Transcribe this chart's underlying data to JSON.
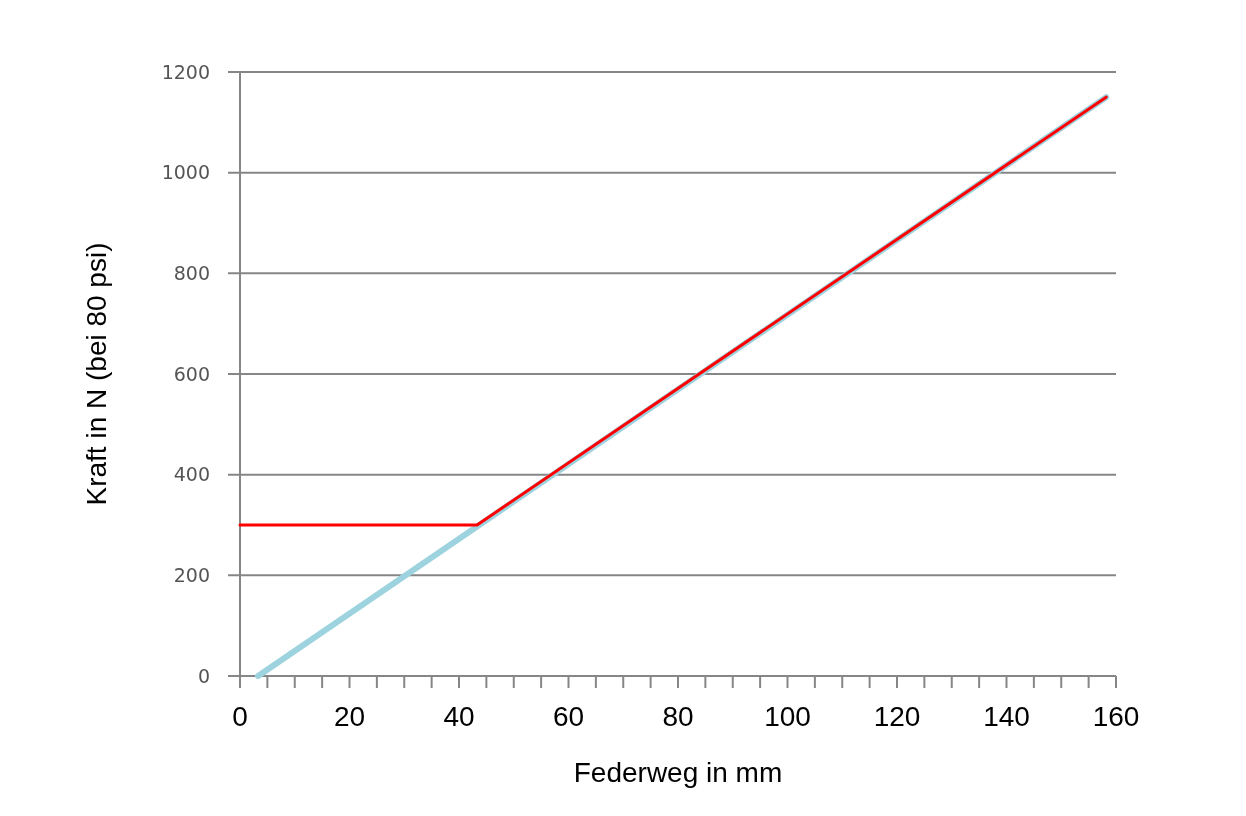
{
  "chart_data": {
    "type": "line",
    "xlabel": "Federweg in mm",
    "ylabel": "Kraft in N (bei 80 psi)",
    "xlim": [
      0,
      160
    ],
    "ylim": [
      0,
      1200
    ],
    "xticks": [
      0,
      {
        "value": 5,
        "label": null
      },
      {
        "value": 10,
        "label": null
      },
      {
        "value": 15,
        "label": null
      },
      20,
      {
        "value": 25,
        "label": null
      },
      {
        "value": 30,
        "label": null
      },
      {
        "value": 35,
        "label": null
      },
      40,
      {
        "value": 45,
        "label": null
      },
      {
        "value": 50,
        "label": null
      },
      {
        "value": 55,
        "label": null
      },
      60,
      {
        "value": 65,
        "label": null
      },
      {
        "value": 70,
        "label": null
      },
      {
        "value": 75,
        "label": null
      },
      80,
      {
        "value": 85,
        "label": null
      },
      {
        "value": 90,
        "label": null
      },
      {
        "value": 95,
        "label": null
      },
      100,
      {
        "value": 105,
        "label": null
      },
      {
        "value": 110,
        "label": null
      },
      {
        "value": 115,
        "label": null
      },
      120,
      {
        "value": 125,
        "label": null
      },
      {
        "value": 130,
        "label": null
      },
      {
        "value": 135,
        "label": null
      },
      140,
      {
        "value": 145,
        "label": null
      },
      {
        "value": 150,
        "label": null
      },
      {
        "value": 155,
        "label": null
      },
      160
    ],
    "yticks": [
      0,
      200,
      400,
      600,
      800,
      1000,
      1200
    ],
    "grid": "y",
    "marker": "none",
    "line_style": "solid",
    "series": [
      {
        "color": "#9cd3df",
        "x": [
          3.3,
          158.2
        ],
        "values": [
          0,
          1150
        ]
      },
      {
        "color": "#ff0000",
        "x": [
          0,
          43.3,
          158.2
        ],
        "values": [
          300,
          300,
          1150
        ]
      }
    ]
  }
}
